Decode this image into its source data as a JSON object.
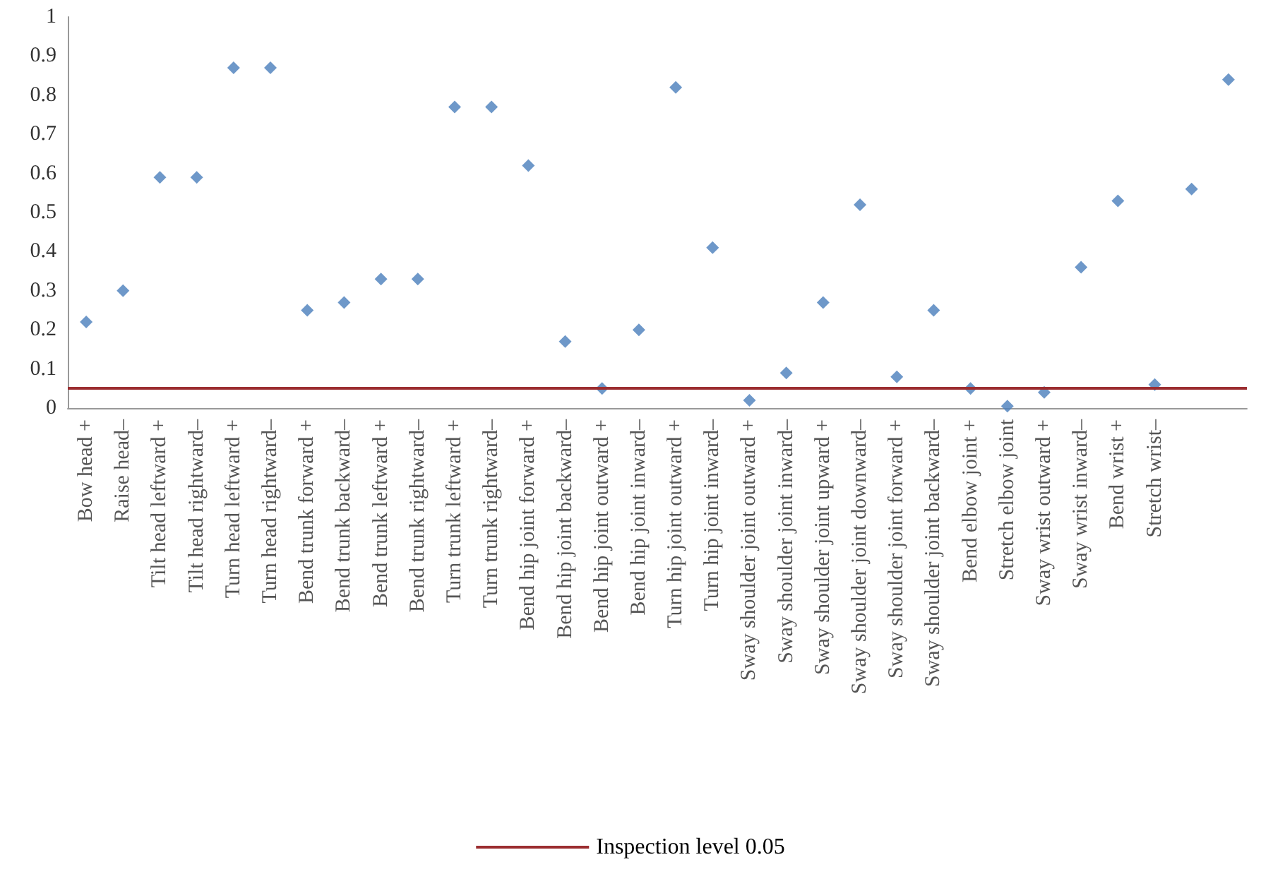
{
  "chart_data": {
    "type": "scatter",
    "categories": [
      "Bow head +",
      "Raise head–",
      "Tilt head leftward +",
      "Tilt head rightward–",
      "Turn head leftward +",
      "Turn head rightward–",
      "Bend trunk forward +",
      "Bend trunk backward–",
      "Bend trunk leftward +",
      "Bend trunk rightward–",
      "Turn trunk leftward +",
      "Turn trunk rightward–",
      "Bend hip joint forward +",
      "Bend hip joint backward–",
      "Bend hip joint outward +",
      "Bend hip joint inward–",
      "Turn hip joint outward +",
      "Turn hip joint inward–",
      "Sway shoulder joint outward +",
      "Sway shoulder joint inward–",
      "Sway shoulder joint upward +",
      "Sway shoulder joint downward–",
      "Sway shoulder joint forward +",
      "Sway shoulder joint backward–",
      "Bend elbow joint +",
      "Stretch elbow joint",
      "Sway wrist outward +",
      "Sway wrist inward–",
      "Bend wrist +",
      "Stretch wrist–",
      null,
      null
    ],
    "series": [
      {
        "color": "#4a7ebb",
        "values": [
          0.22,
          0.3,
          0.59,
          0.59,
          0.87,
          0.87,
          0.25,
          0.27,
          0.33,
          0.33,
          0.77,
          0.77,
          0.62,
          0.17,
          0.05,
          0.2,
          0.82,
          0.41,
          0.02,
          0.09,
          0.27,
          0.52,
          0.08,
          0.25,
          0.05,
          0.005,
          0.04,
          0.36,
          0.53,
          0.06,
          0.56,
          0.84
        ]
      }
    ],
    "ylim": [
      0,
      1
    ],
    "yticks": [
      0,
      0.1,
      0.2,
      0.3,
      0.4,
      0.5,
      0.6,
      0.7,
      0.8,
      0.9,
      1
    ],
    "ref_lines": [
      {
        "axis": "y",
        "value": 0.05,
        "label": "Inspection level 0.05",
        "color": "#9b2d30"
      }
    ],
    "marker": "diamond",
    "grid": false,
    "legend": "bottom"
  }
}
